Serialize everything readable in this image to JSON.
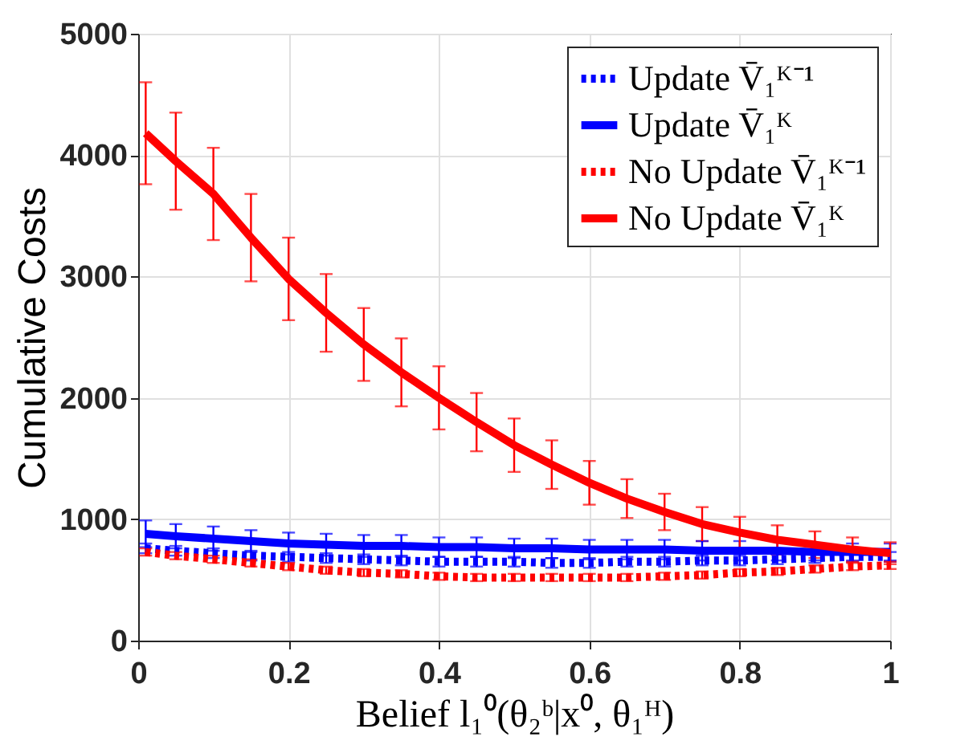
{
  "chart_data": {
    "type": "line",
    "xlabel": "Belief l₁⁰(θ₂ᵇ|x⁰, θ₁ᴴ)",
    "ylabel": "Cumulative Costs",
    "x": [
      0.01,
      0.05,
      0.1,
      0.15,
      0.2,
      0.25,
      0.3,
      0.35,
      0.4,
      0.45,
      0.5,
      0.55,
      0.6,
      0.65,
      0.7,
      0.75,
      0.8,
      0.85,
      0.9,
      0.95,
      1.0
    ],
    "series": [
      {
        "name": "Update V̄₁ᴷ⁻¹",
        "color": "#0000ff",
        "line_style": "dotted",
        "values": [
          760,
          740,
          720,
          700,
          690,
          680,
          670,
          660,
          650,
          650,
          650,
          640,
          640,
          650,
          650,
          660,
          660,
          670,
          680,
          690,
          690
        ],
        "errors": [
          40,
          40,
          40,
          40,
          40,
          40,
          40,
          40,
          40,
          40,
          40,
          40,
          40,
          40,
          40,
          40,
          40,
          40,
          40,
          40,
          40
        ]
      },
      {
        "name": "Update V̄₁ᴷ",
        "color": "#0000ff",
        "line_style": "solid",
        "values": [
          880,
          860,
          840,
          820,
          800,
          790,
          780,
          780,
          770,
          770,
          760,
          760,
          750,
          750,
          750,
          740,
          740,
          740,
          730,
          730,
          730
        ],
        "errors": [
          110,
          100,
          100,
          90,
          90,
          90,
          90,
          90,
          80,
          80,
          80,
          80,
          80,
          80,
          80,
          80,
          80,
          80,
          70,
          70,
          70
        ]
      },
      {
        "name": "No Update V̄₁ᴷ⁻¹",
        "color": "#ff0000",
        "line_style": "dotted",
        "values": [
          730,
          700,
          670,
          640,
          610,
          580,
          560,
          550,
          530,
          520,
          520,
          520,
          520,
          520,
          530,
          540,
          560,
          570,
          590,
          610,
          620
        ],
        "errors": [
          30,
          30,
          30,
          30,
          30,
          30,
          30,
          30,
          30,
          30,
          30,
          30,
          30,
          30,
          30,
          30,
          30,
          30,
          30,
          30,
          30
        ]
      },
      {
        "name": "No Update V̄₁ᴷ",
        "color": "#ff0000",
        "line_style": "solid",
        "values": [
          4180,
          3950,
          3680,
          3320,
          2980,
          2700,
          2440,
          2210,
          2000,
          1800,
          1610,
          1450,
          1300,
          1170,
          1060,
          960,
          890,
          830,
          790,
          750,
          720
        ],
        "errors": [
          420,
          400,
          380,
          360,
          340,
          320,
          300,
          280,
          260,
          240,
          220,
          200,
          180,
          160,
          150,
          140,
          130,
          120,
          110,
          100,
          90
        ]
      }
    ],
    "xlim": [
      0,
      1
    ],
    "xticks": [
      0,
      0.2,
      0.4,
      0.6,
      0.8,
      1
    ],
    "ylim": [
      0,
      5000
    ],
    "yticks": [
      0,
      1000,
      2000,
      3000,
      4000,
      5000
    ],
    "grid": true,
    "legend": "top right",
    "marker": "none"
  }
}
